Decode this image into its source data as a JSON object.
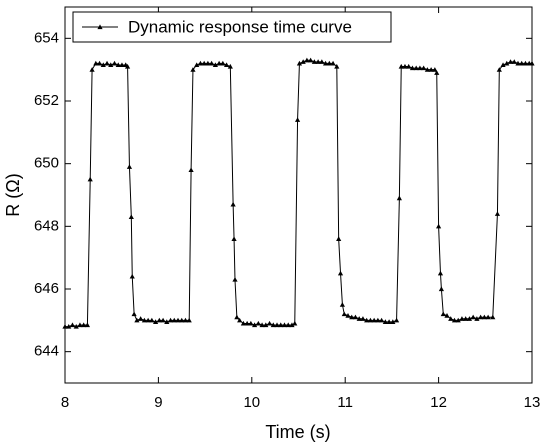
{
  "chart_data": {
    "type": "line",
    "xlabel": "Time (s)",
    "ylabel": "R (Ω)",
    "xlim": [
      8,
      13
    ],
    "ylim": [
      643,
      655
    ],
    "xticks": [
      8,
      9,
      10,
      11,
      12,
      13
    ],
    "yticks": [
      644,
      646,
      648,
      650,
      652,
      654
    ],
    "legend": "top-left",
    "series": [
      {
        "name": "Dynamic response time curve",
        "color": "#000000",
        "marker": "triangle",
        "x": [
          8.0,
          8.04,
          8.08,
          8.12,
          8.16,
          8.2,
          8.24,
          8.27,
          8.29,
          8.33,
          8.37,
          8.41,
          8.45,
          8.49,
          8.53,
          8.57,
          8.61,
          8.65,
          8.67,
          8.69,
          8.71,
          8.72,
          8.74,
          8.77,
          8.81,
          8.85,
          8.89,
          8.93,
          8.97,
          9.01,
          9.05,
          9.09,
          9.13,
          9.17,
          9.21,
          9.25,
          9.29,
          9.33,
          9.35,
          9.37,
          9.41,
          9.45,
          9.49,
          9.53,
          9.57,
          9.61,
          9.65,
          9.69,
          9.73,
          9.77,
          9.8,
          9.81,
          9.82,
          9.84,
          9.87,
          9.91,
          9.95,
          9.99,
          10.03,
          10.07,
          10.11,
          10.15,
          10.19,
          10.23,
          10.27,
          10.31,
          10.35,
          10.39,
          10.43,
          10.46,
          10.49,
          10.51,
          10.55,
          10.59,
          10.63,
          10.67,
          10.71,
          10.75,
          10.79,
          10.83,
          10.87,
          10.91,
          10.93,
          10.95,
          10.97,
          10.99,
          11.03,
          11.07,
          11.11,
          11.15,
          11.19,
          11.23,
          11.27,
          11.31,
          11.35,
          11.39,
          11.43,
          11.47,
          11.51,
          11.55,
          11.58,
          11.6,
          11.64,
          11.68,
          11.72,
          11.76,
          11.8,
          11.84,
          11.88,
          11.92,
          11.96,
          11.98,
          12.0,
          12.02,
          12.03,
          12.05,
          12.09,
          12.13,
          12.17,
          12.21,
          12.25,
          12.29,
          12.33,
          12.37,
          12.41,
          12.45,
          12.49,
          12.53,
          12.58,
          12.63,
          12.65,
          12.69,
          12.73,
          12.77,
          12.81,
          12.85,
          12.89,
          12.93,
          12.97,
          13.0
        ],
        "values": [
          644.8,
          644.8,
          644.85,
          644.8,
          644.85,
          644.85,
          644.85,
          649.5,
          653.0,
          653.2,
          653.2,
          653.15,
          653.2,
          653.15,
          653.2,
          653.15,
          653.15,
          653.15,
          653.1,
          649.9,
          648.3,
          646.4,
          645.2,
          645.0,
          645.05,
          645.0,
          645.0,
          645.0,
          644.95,
          645.0,
          645.0,
          644.95,
          645.0,
          645.0,
          645.0,
          645.0,
          645.0,
          645.0,
          649.8,
          653.0,
          653.15,
          653.2,
          653.2,
          653.2,
          653.2,
          653.15,
          653.2,
          653.2,
          653.15,
          653.1,
          648.7,
          647.6,
          646.3,
          645.1,
          645.0,
          644.9,
          644.9,
          644.9,
          644.85,
          644.9,
          644.85,
          644.85,
          644.9,
          644.85,
          644.85,
          644.85,
          644.85,
          644.85,
          644.85,
          644.9,
          651.4,
          653.2,
          653.25,
          653.3,
          653.3,
          653.25,
          653.25,
          653.25,
          653.2,
          653.2,
          653.2,
          653.1,
          647.6,
          646.5,
          645.5,
          645.2,
          645.15,
          645.1,
          645.1,
          645.05,
          645.05,
          645.0,
          645.0,
          645.0,
          645.0,
          645.0,
          644.95,
          644.95,
          644.95,
          645.0,
          648.9,
          653.1,
          653.1,
          653.1,
          653.05,
          653.05,
          653.05,
          653.05,
          653.0,
          653.0,
          653.0,
          652.9,
          648.0,
          646.5,
          646.0,
          645.2,
          645.15,
          645.05,
          645.0,
          645.0,
          645.05,
          645.05,
          645.05,
          645.1,
          645.05,
          645.1,
          645.1,
          645.1,
          645.1,
          648.4,
          653.0,
          653.15,
          653.2,
          653.25,
          653.25,
          653.2,
          653.2,
          653.2,
          653.2,
          653.2
        ]
      }
    ]
  }
}
